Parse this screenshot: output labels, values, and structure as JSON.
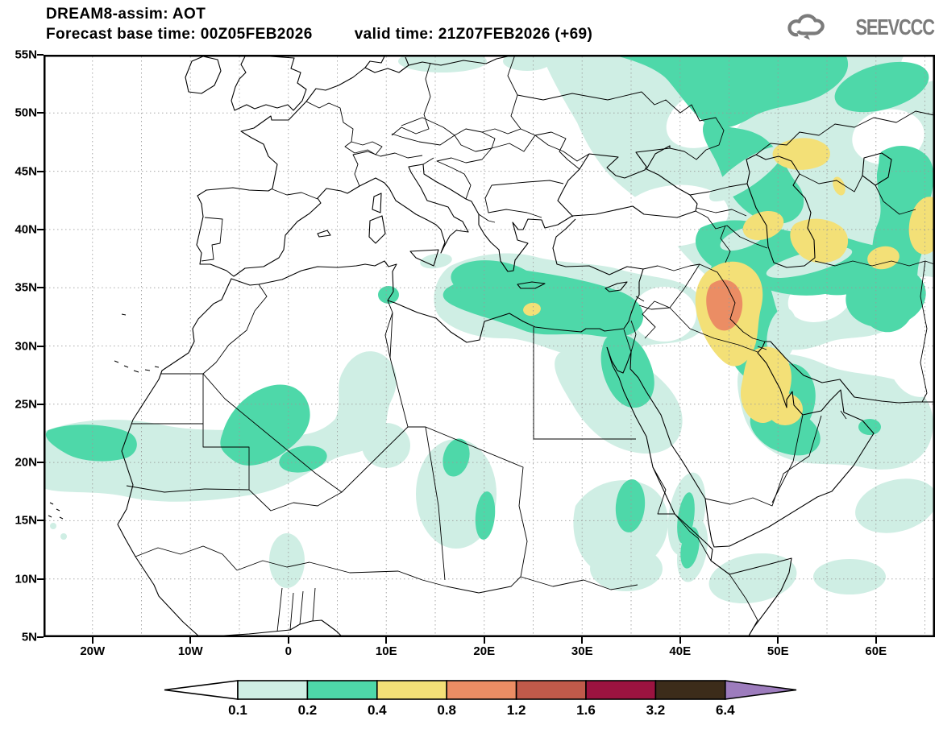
{
  "header": {
    "title": "DREAM8-assim: AOT",
    "subtitle_left": "Forecast base time: 00Z05FEB2026",
    "subtitle_right": "valid time: 21Z07FEB2026 (+69)",
    "logo_text": "SEEVCCC"
  },
  "chart_data": {
    "type": "filled_contour_map",
    "model": "DREAM8-assim",
    "variable": "AOT (aerosol optical thickness)",
    "title": "DREAM8-assim: AOT",
    "forecast_base_time": "00Z05FEB2026",
    "valid_time": "21Z07FEB2026 (+69)",
    "lead_hours": 69,
    "lon_range_deg": [
      -25,
      66
    ],
    "lat_range_deg": [
      5,
      55
    ],
    "grid": "dotted graticule every 5 degrees",
    "lon_ticks": [
      "20W",
      "10W",
      "0",
      "10E",
      "20E",
      "30E",
      "40E",
      "50E",
      "60E"
    ],
    "lat_ticks": [
      "55N",
      "50N",
      "45N",
      "40N",
      "35N",
      "30N",
      "25N",
      "20N",
      "15N",
      "10N",
      "5N"
    ],
    "levels": [
      0.1,
      0.2,
      0.4,
      0.8,
      1.2,
      1.6,
      3.2,
      6.4
    ],
    "colorbar": {
      "labels": [
        "0.1",
        "0.2",
        "0.4",
        "0.8",
        "1.2",
        "1.6",
        "3.2",
        "6.4"
      ],
      "segment_colors": [
        "#cfeee4",
        "#4ed8a9",
        "#f3e077",
        "#eb8d64",
        "#c05a4a",
        "#9b1340",
        "#3c2c1a"
      ],
      "left_arrow_color": "#ffffff",
      "right_arrow_color": "#9d7cbd",
      "outline_color": "#000000"
    },
    "palette": {
      "below_0.1": "#ffffff",
      "0.1-0.2": "#cfeee4",
      "0.2-0.4": "#4ed8a9",
      "0.4-0.8": "#f3e077",
      "0.8-1.2": "#eb8d64",
      "1.2-1.6": "#c05a4a",
      "1.6-3.2": "#9b1340",
      "3.2-6.4": "#3c2c1a",
      "above_6.4": "#9d7cbd"
    },
    "features": [
      {
        "region": "Iraq (Tigris-Euphrates plume core)",
        "center": "44E 33N",
        "max_aot_bin": "0.8-1.2"
      },
      {
        "region": "Iraq/Kuwait/Persian Gulf/Qatar lobe",
        "center": "48E 28N",
        "max_aot_bin": "0.4-0.8"
      },
      {
        "region": "Azerbaijan / west Caspian",
        "center": "47E 40N",
        "max_aot_bin": "0.4-0.8"
      },
      {
        "region": "North of Caspian (Kazakhstan)",
        "center": "49E 48N",
        "max_aot_bin": "0.4-0.8"
      },
      {
        "region": "East of Caspian (Turkmenistan)",
        "center": "55E 39N",
        "max_aot_bin": "0.4-0.8"
      },
      {
        "region": "Near right map edge, Central Asia",
        "center": "65E 41N",
        "max_aot_bin": "0.4-0.8"
      },
      {
        "region": "E Europe-Caucasus-Caspian-Iran band",
        "center": "42E 48N",
        "max_aot_bin": "0.2-0.4"
      },
      {
        "region": "Libya-Egypt coastal band",
        "center": "22E 31.5N",
        "max_aot_bin": "0.2-0.4"
      },
      {
        "region": "Speck on Libya/Egypt coast",
        "center": "25E 33N",
        "max_aot_bin": "0.4-0.8"
      },
      {
        "region": "Northern Red Sea / Sinai",
        "center": "34E 27N",
        "max_aot_bin": "0.2-0.4"
      },
      {
        "region": "Mauritania coast",
        "center": "18W 20.5N",
        "max_aot_bin": "0.2-0.4"
      },
      {
        "region": "North Mali / South Algeria",
        "center": "2W 21N",
        "max_aot_bin": "0.2-0.4"
      },
      {
        "region": "Chad",
        "center": "17E 17N",
        "max_aot_bin": "0.2-0.4"
      },
      {
        "region": "Sudan",
        "center": "28E 16N",
        "max_aot_bin": "0.2-0.4"
      },
      {
        "region": "Red Sea coast (Sudan/Eritrea)",
        "center": "36E 16N",
        "max_aot_bin": "0.2-0.4"
      },
      {
        "region": "Sahel background band",
        "center": "5W 20N",
        "max_aot_bin": "0.1-0.2"
      },
      {
        "region": "Arabian Peninsula / Gulf background",
        "center": "50E 25N",
        "max_aot_bin": "0.1-0.2"
      },
      {
        "region": "Horn of Africa patches",
        "center": "46E 9N",
        "max_aot_bin": "0.1-0.2"
      }
    ]
  }
}
